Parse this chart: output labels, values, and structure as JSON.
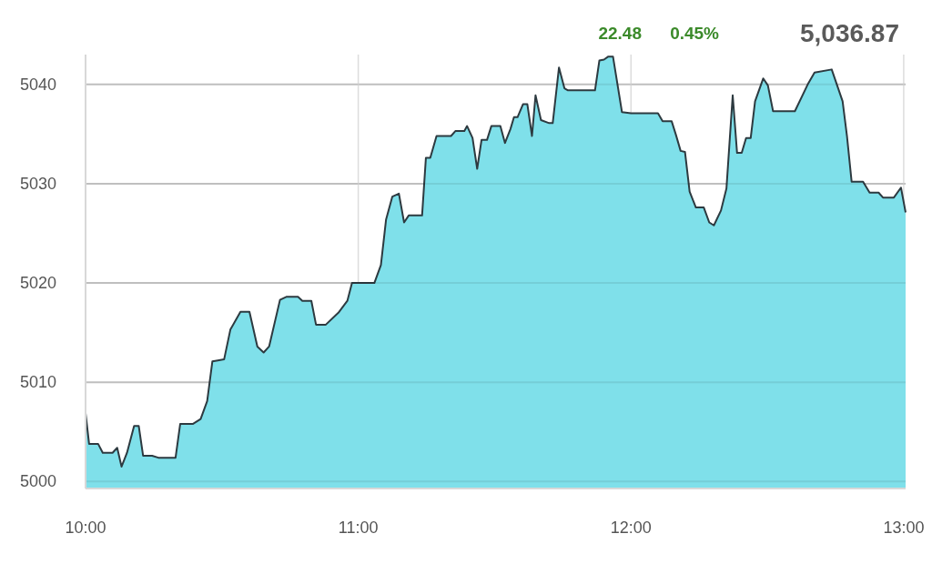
{
  "chart_data": {
    "type": "area",
    "annotations": [
      "22.48",
      "0.45%",
      "5,036.87"
    ],
    "x": [
      10.0,
      10.013,
      10.046,
      10.063,
      10.099,
      10.116,
      10.132,
      10.152,
      10.178,
      10.195,
      10.211,
      10.244,
      10.267,
      10.33,
      10.347,
      10.393,
      10.422,
      10.446,
      10.465,
      10.485,
      10.508,
      10.531,
      10.568,
      10.601,
      10.63,
      10.653,
      10.673,
      10.713,
      10.736,
      10.779,
      10.795,
      10.828,
      10.845,
      10.881,
      10.927,
      10.96,
      10.977,
      11.059,
      11.083,
      11.102,
      11.125,
      11.149,
      11.168,
      11.185,
      11.234,
      11.248,
      11.264,
      11.287,
      11.34,
      11.356,
      11.389,
      11.399,
      11.419,
      11.436,
      11.452,
      11.472,
      11.488,
      11.521,
      11.538,
      11.558,
      11.571,
      11.584,
      11.604,
      11.62,
      11.637,
      11.65,
      11.67,
      11.7,
      11.713,
      11.736,
      11.756,
      11.769,
      11.868,
      11.884,
      11.901,
      11.917,
      11.934,
      11.967,
      12.0,
      12.099,
      12.116,
      12.149,
      12.165,
      12.182,
      12.198,
      12.215,
      12.238,
      12.267,
      12.287,
      12.304,
      12.33,
      12.35,
      12.373,
      12.389,
      12.406,
      12.422,
      12.439,
      12.455,
      12.485,
      12.502,
      12.521,
      12.601,
      12.65,
      12.673,
      12.736,
      12.776,
      12.792,
      12.809,
      12.851,
      12.875,
      12.908,
      12.924,
      12.964,
      12.99,
      13.007
    ],
    "series": [
      {
        "color": "#2d3a40",
        "values": [
          5006.9,
          5003.8,
          5003.8,
          5002.9,
          5002.9,
          5003.4,
          5001.5,
          5002.9,
          5005.6,
          5005.6,
          5002.6,
          5002.6,
          5002.4,
          5002.4,
          5005.8,
          5005.8,
          5006.3,
          5008.1,
          5012.1,
          5012.2,
          5012.3,
          5015.3,
          5017.1,
          5017.1,
          5013.6,
          5013.0,
          5013.6,
          5018.3,
          5018.6,
          5018.6,
          5018.2,
          5018.2,
          5015.8,
          5015.8,
          5017.0,
          5018.2,
          5020.0,
          5020.0,
          5021.8,
          5026.4,
          5028.7,
          5029.0,
          5026.1,
          5026.8,
          5026.8,
          5032.6,
          5032.6,
          5034.8,
          5034.8,
          5035.3,
          5035.3,
          5035.8,
          5034.6,
          5031.5,
          5034.4,
          5034.4,
          5035.8,
          5035.8,
          5034.1,
          5035.5,
          5036.7,
          5036.7,
          5038.0,
          5038.0,
          5034.8,
          5038.9,
          5036.4,
          5036.1,
          5036.1,
          5041.7,
          5039.6,
          5039.4,
          5039.4,
          5042.4,
          5042.5,
          5042.8,
          5042.8,
          5037.2,
          5037.1,
          5037.1,
          5036.3,
          5036.3,
          5034.9,
          5033.3,
          5033.2,
          5029.2,
          5027.6,
          5027.6,
          5026.1,
          5025.8,
          5027.3,
          5029.5,
          5038.9,
          5033.1,
          5033.1,
          5034.6,
          5034.6,
          5038.3,
          5040.6,
          5039.9,
          5037.3,
          5037.3,
          5040.1,
          5041.2,
          5041.5,
          5038.3,
          5034.8,
          5030.2,
          5030.2,
          5029.1,
          5029.1,
          5028.6,
          5028.6,
          5029.6,
          5027.1
        ]
      }
    ],
    "xlim": [
      10,
      13.007
    ],
    "ylim": [
      4999.3,
      5043
    ],
    "xticks": [
      {
        "value": 10,
        "label": "10:00"
      },
      {
        "value": 11,
        "label": "11:00"
      },
      {
        "value": 12,
        "label": "12:00"
      },
      {
        "value": 13,
        "label": "13:00"
      }
    ],
    "yticks": [
      5000,
      5010,
      5020,
      5030,
      5040
    ],
    "grid": true,
    "marker": "none",
    "line_style": "solid"
  }
}
